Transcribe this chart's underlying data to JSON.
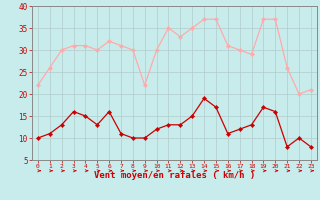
{
  "hours": [
    0,
    1,
    2,
    3,
    4,
    5,
    6,
    7,
    8,
    9,
    10,
    11,
    12,
    13,
    14,
    15,
    16,
    17,
    18,
    19,
    20,
    21,
    22,
    23
  ],
  "wind_avg": [
    10,
    11,
    13,
    16,
    15,
    13,
    16,
    11,
    10,
    10,
    12,
    13,
    13,
    15,
    19,
    17,
    11,
    12,
    13,
    17,
    16,
    8,
    10,
    8
  ],
  "wind_gust": [
    22,
    26,
    30,
    31,
    31,
    30,
    32,
    31,
    30,
    22,
    30,
    35,
    33,
    35,
    37,
    37,
    31,
    30,
    29,
    37,
    37,
    26,
    20,
    21
  ],
  "avg_color": "#cc0000",
  "gust_color": "#ffaaaa",
  "bg_color": "#c8ecec",
  "grid_color": "#b0cccc",
  "xlabel": "Vent moyen/en rafales ( km/h )",
  "xlabel_color": "#cc0000",
  "tick_color": "#cc0000",
  "spine_color": "#888888",
  "ylim": [
    5,
    40
  ],
  "yticks": [
    5,
    10,
    15,
    20,
    25,
    30,
    35,
    40
  ]
}
